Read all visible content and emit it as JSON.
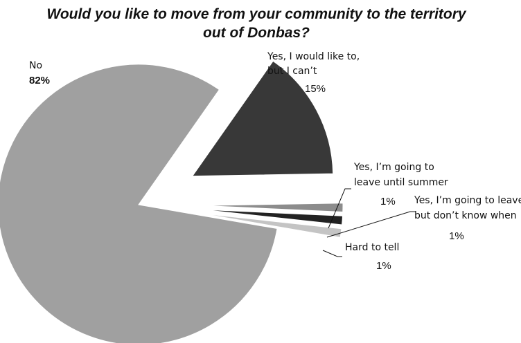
{
  "chart_data": {
    "type": "pie",
    "title_lines": [
      "Would you like to move from your community to the territory",
      "out of Donbas?"
    ],
    "slices": [
      {
        "label_lines": [
          "No"
        ],
        "value": 82,
        "value_label": "82%",
        "color": "#a0a0a0"
      },
      {
        "label_lines": [
          "Yes, I would like to,",
          "but I can’t"
        ],
        "value": 15,
        "value_label": "15%",
        "color": "#383838"
      },
      {
        "label_lines": [
          "Yes, I’m going to",
          "leave until summer"
        ],
        "value": 1,
        "value_label": "1%",
        "color": "#8c8c8c"
      },
      {
        "label_lines": [
          "Yes, I’m going to leave,",
          "but don’t know when"
        ],
        "value": 1,
        "value_label": "1%",
        "color": "#222222"
      },
      {
        "label_lines": [
          "Hard to tell"
        ],
        "value": 1,
        "value_label": "1%",
        "color": "#c4c4c4"
      }
    ],
    "legend": "none",
    "exploded": true
  }
}
